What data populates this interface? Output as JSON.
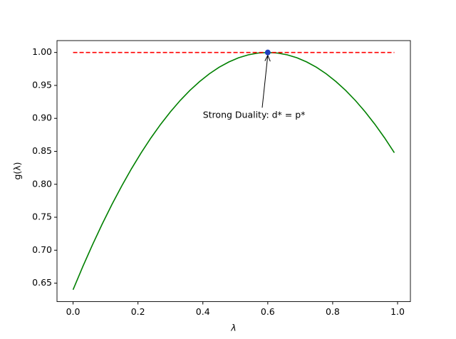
{
  "chart_data": {
    "type": "line",
    "xlabel": "λ",
    "ylabel": "g(λ)",
    "x": [
      0,
      0.03,
      0.06,
      0.09,
      0.12,
      0.15,
      0.18,
      0.21,
      0.24,
      0.27,
      0.3,
      0.33,
      0.36,
      0.39,
      0.42,
      0.45,
      0.48,
      0.51,
      0.54,
      0.57,
      0.6,
      0.63,
      0.66,
      0.69,
      0.72,
      0.75,
      0.78,
      0.81,
      0.84,
      0.87,
      0.9,
      0.93,
      0.96,
      0.99
    ],
    "series": [
      {
        "color": "#008000",
        "style": "solid",
        "values": [
          0.64,
          0.6751,
          0.7084,
          0.7399,
          0.7696,
          0.7975,
          0.8236,
          0.8479,
          0.8704,
          0.8911,
          0.91,
          0.9271,
          0.9424,
          0.9559,
          0.9676,
          0.9775,
          0.9856,
          0.9919,
          0.9964,
          0.9991,
          1,
          0.9991,
          0.9964,
          0.9919,
          0.9856,
          0.9775,
          0.9676,
          0.9559,
          0.9424,
          0.9271,
          0.91,
          0.8911,
          0.8704,
          0.8479
        ]
      },
      {
        "color": "#ff0000",
        "style": "dashed",
        "x": [
          0,
          0.99
        ],
        "values": [
          1,
          1
        ]
      }
    ],
    "point": {
      "x": 0.6,
      "y": 1,
      "color": "#1f3fbf"
    },
    "annotation": {
      "text": "Strong Duality: d* = p*",
      "xy": [
        0.6,
        1
      ],
      "xytext": [
        0.4,
        0.9
      ]
    },
    "xlim": [
      -0.0495,
      1.0395
    ],
    "ylim": [
      0.622,
      1.018
    ],
    "xticks": [
      {
        "value": 0,
        "label": "0.0"
      },
      0.2,
      0.4,
      0.6,
      0.8,
      {
        "value": 1,
        "label": "1.0"
      }
    ],
    "yticks": [
      0.65,
      {
        "value": 0.7,
        "label": "0.70"
      },
      0.75,
      {
        "value": 0.8,
        "label": "0.80"
      },
      0.85,
      {
        "value": 0.9,
        "label": "0.90"
      },
      0.95,
      {
        "value": 1,
        "label": "1.00"
      }
    ]
  }
}
